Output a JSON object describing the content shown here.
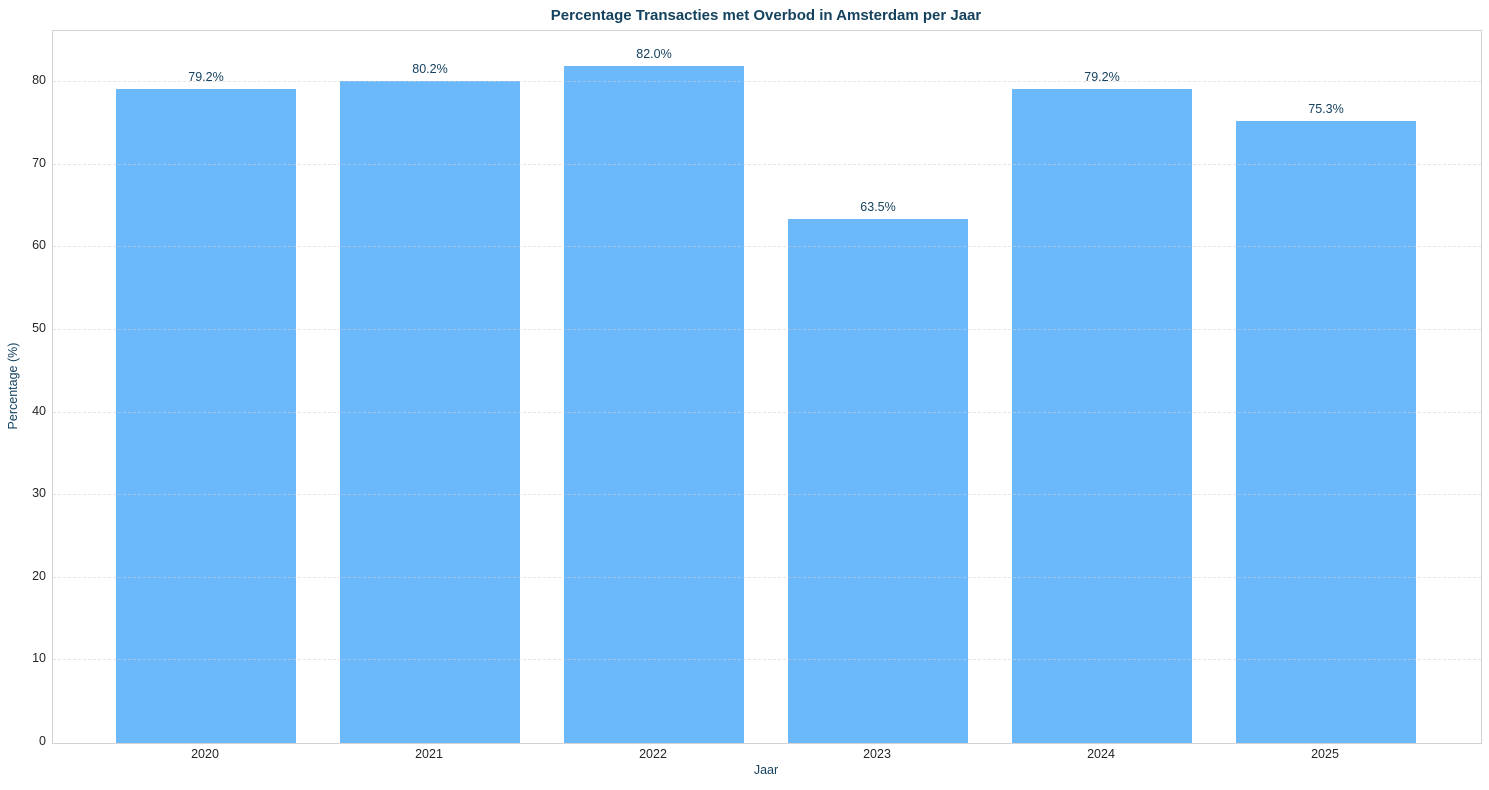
{
  "chart_data": {
    "type": "bar",
    "title": "Percentage Transacties met Overbod in Amsterdam per Jaar",
    "xlabel": "Jaar",
    "ylabel": "Percentage (%)",
    "categories": [
      "2020",
      "2021",
      "2022",
      "2023",
      "2024",
      "2025"
    ],
    "values": [
      79.2,
      80.2,
      82.0,
      63.5,
      79.2,
      75.3
    ],
    "value_labels": [
      "79.2%",
      "80.2%",
      "82.0%",
      "63.5%",
      "79.2%",
      "75.3%"
    ],
    "ylim": [
      0,
      86.2
    ],
    "yticks": [
      0,
      10,
      20,
      30,
      40,
      50,
      60,
      70,
      80
    ],
    "grid": "horizontal-dashed",
    "legend": "none",
    "bar_color": "#6bb8fa",
    "label_color": "#15425f",
    "tick_color": "#262626",
    "gridline_color": "#d0d0d0",
    "spine_color": "#d2d2d2"
  }
}
